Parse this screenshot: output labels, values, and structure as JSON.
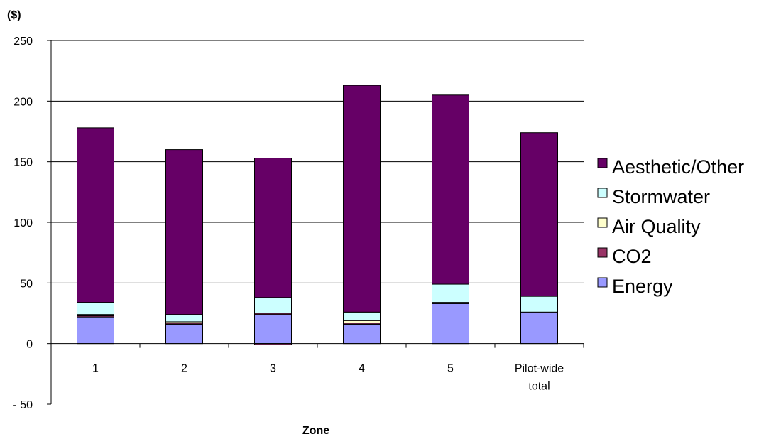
{
  "chart_data": {
    "type": "bar",
    "stacked": true,
    "ylabel": "($)",
    "xlabel": "Zone",
    "ylim": [
      -50,
      250
    ],
    "yticks": [
      -50,
      0,
      50,
      100,
      150,
      200,
      250
    ],
    "ytick_labels": [
      "- 50",
      "0",
      "50",
      "100",
      "150",
      "200",
      "250"
    ],
    "categories": [
      "1",
      "2",
      "3",
      "4",
      "5",
      "Pilot-wide total"
    ],
    "category_lines": [
      [
        "1"
      ],
      [
        "2"
      ],
      [
        "3"
      ],
      [
        "4"
      ],
      [
        "5"
      ],
      [
        "Pilot-wide",
        "total"
      ]
    ],
    "grid": true,
    "legend_position": "right",
    "series": [
      {
        "name": "Energy",
        "color": "#9999ff",
        "values": [
          22,
          16,
          24,
          16,
          33,
          26
        ]
      },
      {
        "name": "CO2",
        "color": "#993366",
        "values": [
          1,
          1,
          1,
          1,
          1,
          0
        ]
      },
      {
        "name": "Air Quality",
        "color": "#ffffcc",
        "values": [
          1,
          1,
          0,
          2,
          0,
          0
        ]
      },
      {
        "name": "Stormwater",
        "color": "#ccffff",
        "values": [
          10,
          6,
          13,
          7,
          15,
          13
        ]
      },
      {
        "name": "Aesthetic/Other",
        "color": "#660066",
        "values": [
          144,
          136,
          115,
          187,
          156,
          135
        ]
      }
    ],
    "negative_segments": [
      {
        "series": "CO2",
        "category": "3",
        "value": -1
      }
    ],
    "legend_order": [
      "Aesthetic/Other",
      "Stormwater",
      "Air Quality",
      "CO2",
      "Energy"
    ]
  }
}
